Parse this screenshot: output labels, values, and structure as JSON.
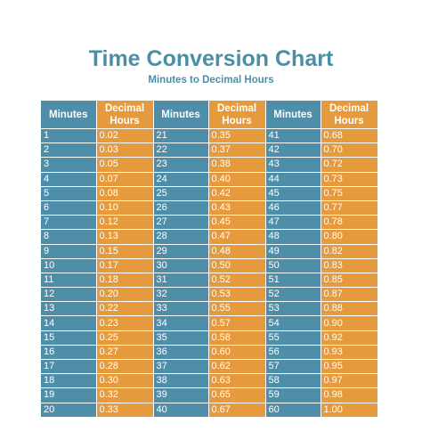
{
  "title": "Time Conversion Chart",
  "subtitle": "Minutes to Decimal Hours",
  "colors": {
    "title": "#4a8fa6",
    "minutes_column": "#4e8ea8",
    "decimal_column": "#e49a3d",
    "cell_text": "#ffffff"
  },
  "headers": {
    "minutes": "Minutes",
    "decimal_line1": "Decimal",
    "decimal_line2": "Hours"
  },
  "rows": [
    [
      "1",
      "0.02",
      "21",
      "0.35",
      "41",
      "0.68"
    ],
    [
      "2",
      "0.03",
      "22",
      "0.37",
      "42",
      "0.70"
    ],
    [
      "3",
      "0.05",
      "23",
      "0.38",
      "43",
      "0.72"
    ],
    [
      "4",
      "0.07",
      "24",
      "0.40",
      "44",
      "0.73"
    ],
    [
      "5",
      "0.08",
      "25",
      "0.42",
      "45",
      "0.75"
    ],
    [
      "6",
      "0.10",
      "26",
      "0.43",
      "46",
      "0.77"
    ],
    [
      "7",
      "0.12",
      "27",
      "0.45",
      "47",
      "0.78"
    ],
    [
      "8",
      "0.13",
      "28",
      "0.47",
      "48",
      "0.80"
    ],
    [
      "9",
      "0.15",
      "29",
      "0.48",
      "49",
      "0.82"
    ],
    [
      "10",
      "0.17",
      "30",
      "0.50",
      "50",
      "0.83"
    ],
    [
      "11",
      "0.18",
      "31",
      "0.52",
      "51",
      "0.85"
    ],
    [
      "12",
      "0.20",
      "32",
      "0.53",
      "52",
      "0.87"
    ],
    [
      "13",
      "0.22",
      "33",
      "0.55",
      "53",
      "0.88"
    ],
    [
      "14",
      "0.23",
      "34",
      "0.57",
      "54",
      "0.90"
    ],
    [
      "15",
      "0.25",
      "35",
      "0.58",
      "55",
      "0.92"
    ],
    [
      "16",
      "0.27",
      "36",
      "0.60",
      "56",
      "0.93"
    ],
    [
      "17",
      "0.28",
      "37",
      "0.62",
      "57",
      "0.95"
    ],
    [
      "18",
      "0.30",
      "38",
      "0.63",
      "58",
      "0.97"
    ],
    [
      "19",
      "0.32",
      "39",
      "0.65",
      "59",
      "0.98"
    ],
    [
      "20",
      "0.33",
      "40",
      "0.67",
      "60",
      "1.00"
    ]
  ]
}
